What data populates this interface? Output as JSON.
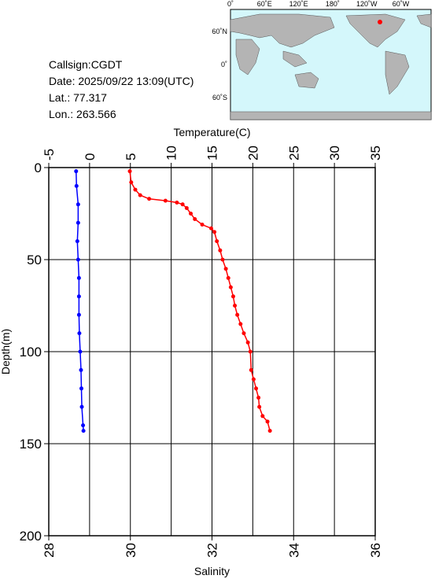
{
  "info": {
    "callsign": "Callsign:CGDT",
    "date": "Date:  2025/09/22 13:09(UTC)",
    "lat": "Lat.:  77.317",
    "lon": "Lon.:  263.566"
  },
  "map": {
    "lon_labels": [
      "0˚",
      "60˚E",
      "120˚E",
      "180˚",
      "120˚W",
      "60˚W"
    ],
    "lat_labels": [
      "60˚N",
      "0˚",
      "60˚S"
    ]
  },
  "chart_data": {
    "type": "profile",
    "xlabel": "Salinity",
    "xlim": [
      28,
      36
    ],
    "xticks": [
      28,
      30,
      32,
      34,
      36
    ],
    "x2label": "Temperature(C)",
    "x2lim": [
      -5,
      35
    ],
    "x2ticks": [
      -5,
      0,
      5,
      10,
      15,
      20,
      25,
      30,
      35
    ],
    "ylabel": "Depth(m)",
    "ylim": [
      0,
      200
    ],
    "yticks": [
      0,
      50,
      100,
      150,
      200
    ],
    "y_inverted": true,
    "grid": true,
    "series": [
      {
        "color": "#0000ff",
        "axis": "x",
        "x": [
          28.67,
          28.68,
          28.72,
          28.72,
          28.7,
          28.72,
          28.74,
          28.74,
          28.74,
          28.75,
          28.77,
          28.79,
          28.8,
          28.81,
          28.84,
          28.85
        ],
        "y": [
          2,
          10,
          20,
          30,
          40,
          50,
          60,
          70,
          80,
          90,
          100,
          110,
          120,
          130,
          140,
          143
        ]
      },
      {
        "color": "#ff0000",
        "axis": "x2",
        "x": [
          4.93,
          5.1,
          5.6,
          6.2,
          7.3,
          9.3,
          10.7,
          11.4,
          11.9,
          12.4,
          12.9,
          13.8,
          14.9,
          15.3,
          15.6,
          16.0,
          16.3,
          16.7,
          17.0,
          17.3,
          17.6,
          17.8,
          18.1,
          18.5,
          18.9,
          19.4,
          19.7,
          19.8,
          20.1,
          20.4,
          20.7,
          20.8,
          21.2,
          21.8,
          22.1
        ],
        "y": [
          2,
          8,
          12,
          15,
          17,
          18,
          19,
          20,
          22,
          25,
          28,
          31,
          33,
          35,
          40,
          45,
          50,
          55,
          60,
          65,
          70,
          75,
          80,
          85,
          90,
          95,
          100,
          110,
          115,
          120,
          125,
          130,
          135,
          138,
          143
        ]
      }
    ]
  }
}
